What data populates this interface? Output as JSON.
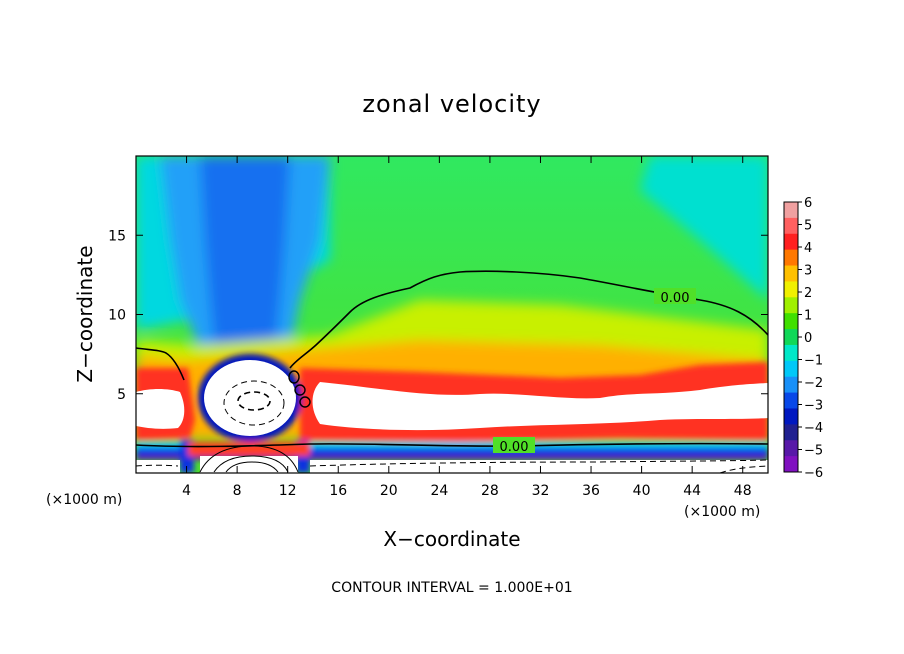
{
  "chart_data": {
    "type": "heatmap",
    "title": "zonal velocity",
    "xlabel": "X−coordinate",
    "ylabel": "Z−coordinate",
    "x_unit": "(×1000 m)",
    "y_unit": "(×1000 m)",
    "xlim": [
      0,
      50
    ],
    "ylim": [
      0,
      20
    ],
    "x_ticks": [
      4,
      8,
      12,
      16,
      20,
      24,
      28,
      32,
      36,
      40,
      44,
      48
    ],
    "y_ticks": [
      5,
      10,
      15
    ],
    "x_tick_labels": [
      "4",
      "8",
      "12",
      "16",
      "20",
      "24",
      "28",
      "32",
      "36",
      "40",
      "44",
      "48"
    ],
    "y_tick_labels": [
      "5",
      "10",
      "15"
    ],
    "colorbar": {
      "range": [
        -6,
        6
      ],
      "tick_labels": [
        "6",
        "5",
        "4",
        "3",
        "2",
        "1",
        "0",
        "−1",
        "−2",
        "−3",
        "−4",
        "−5",
        "−6"
      ],
      "colors": [
        "#f0a0a0",
        "#ff6060",
        "#ff2020",
        "#ff7800",
        "#ffc000",
        "#f0f000",
        "#a0f000",
        "#40e000",
        "#10d858",
        "#00e8c8",
        "#00c8f8",
        "#1890f8",
        "#0848e8",
        "#0018c0",
        "#202090",
        "#5818a8",
        "#8010c0"
      ]
    },
    "zero_contour_labels": [
      "0.00",
      "0.00"
    ],
    "contour_interval_text": "CONTOUR INTERVAL = 1.000E+01",
    "features": [
      {
        "kind": "jet",
        "sign": "negative",
        "x_range": [
          5,
          13
        ],
        "z_range": [
          7,
          20
        ],
        "peak": -4
      },
      {
        "kind": "low-level core",
        "sign": "positive",
        "x_range": [
          13,
          50
        ],
        "z_range": [
          2,
          6
        ],
        "peak": 6
      },
      {
        "kind": "upper region",
        "sign": "positive",
        "x_range": [
          14,
          50
        ],
        "z_range": [
          8,
          13
        ],
        "peak": 1
      },
      {
        "kind": "surface layer",
        "sign": "negative",
        "x_range": [
          0,
          50
        ],
        "z_range": [
          0,
          1.5
        ],
        "peak": -6
      }
    ]
  }
}
